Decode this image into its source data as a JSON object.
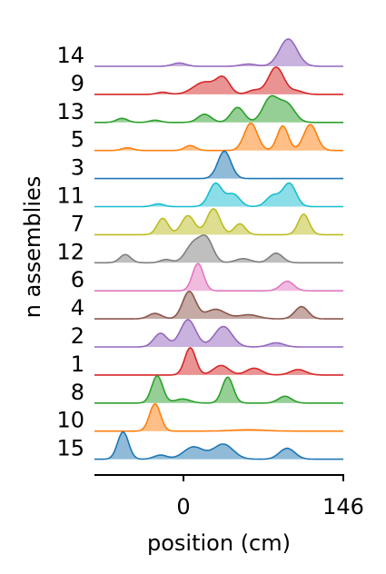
{
  "chart_data": {
    "type": "ridgeline",
    "ylabel": "n assemblies",
    "xlabel": "position (cm)",
    "xaxis": {
      "ticks": [
        "0",
        "146"
      ],
      "range": [
        -80,
        146
      ]
    },
    "colors": {
      "blue": "#1f77b4",
      "orange": "#ff7f0e",
      "green": "#2ca02c",
      "red": "#d62728",
      "purple": "#9467bd",
      "brown": "#8c564b",
      "pink": "#e377c2",
      "gray": "#7f7f7f",
      "olive": "#bcbd22",
      "cyan": "#17becf"
    },
    "series": [
      {
        "name": "14",
        "color": "#9467bd",
        "peaks": [
          [
            -3,
            0.12,
            6
          ],
          [
            60,
            0.08,
            7
          ],
          [
            96,
            1.0,
            8
          ]
        ]
      },
      {
        "name": "9",
        "color": "#d62728",
        "peaks": [
          [
            -18,
            0.08,
            5
          ],
          [
            20,
            0.45,
            10
          ],
          [
            37,
            0.55,
            6
          ],
          [
            65,
            0.15,
            6
          ],
          [
            85,
            1.0,
            7
          ],
          [
            104,
            0.12,
            6
          ]
        ]
      },
      {
        "name": "13",
        "color": "#2ca02c",
        "peaks": [
          [
            -55,
            0.15,
            5
          ],
          [
            -25,
            0.08,
            5
          ],
          [
            20,
            0.3,
            6
          ],
          [
            50,
            0.55,
            6
          ],
          [
            80,
            0.9,
            7
          ],
          [
            95,
            0.65,
            7
          ]
        ]
      },
      {
        "name": "5",
        "color": "#ff7f0e",
        "peaks": [
          [
            -50,
            0.1,
            5
          ],
          [
            7,
            0.18,
            5
          ],
          [
            62,
            1.0,
            6
          ],
          [
            91,
            0.9,
            5
          ],
          [
            116,
            0.95,
            6
          ]
        ]
      },
      {
        "name": "3",
        "color": "#1f77b4",
        "peaks": [
          [
            38,
            1.0,
            6
          ]
        ]
      },
      {
        "name": "11",
        "color": "#17becf",
        "peaks": [
          [
            -22,
            0.1,
            5
          ],
          [
            30,
            0.85,
            6
          ],
          [
            46,
            0.45,
            6
          ],
          [
            82,
            0.4,
            6
          ],
          [
            97,
            0.85,
            6
          ]
        ]
      },
      {
        "name": "7",
        "color": "#bcbd22",
        "peaks": [
          [
            -18,
            0.6,
            5
          ],
          [
            5,
            0.7,
            6
          ],
          [
            28,
            0.95,
            6
          ],
          [
            52,
            0.4,
            5
          ],
          [
            110,
            0.75,
            5
          ]
        ]
      },
      {
        "name": "12",
        "color": "#7f7f7f",
        "peaks": [
          [
            -52,
            0.3,
            5
          ],
          [
            -15,
            0.12,
            5
          ],
          [
            10,
            0.7,
            7
          ],
          [
            22,
            0.8,
            6
          ],
          [
            55,
            0.15,
            7
          ],
          [
            85,
            0.35,
            6
          ]
        ]
      },
      {
        "name": "6",
        "color": "#e377c2",
        "peaks": [
          [
            14,
            1.0,
            5
          ],
          [
            95,
            0.35,
            6
          ]
        ]
      },
      {
        "name": "4",
        "color": "#8c564b",
        "peaks": [
          [
            -25,
            0.2,
            6
          ],
          [
            6,
            1.0,
            6
          ],
          [
            30,
            0.35,
            9
          ],
          [
            60,
            0.15,
            9
          ],
          [
            108,
            0.45,
            6
          ]
        ]
      },
      {
        "name": "2",
        "color": "#9467bd",
        "peaks": [
          [
            -20,
            0.5,
            6
          ],
          [
            5,
            1.0,
            7
          ],
          [
            37,
            0.75,
            8
          ],
          [
            85,
            0.15,
            7
          ]
        ]
      },
      {
        "name": "1",
        "color": "#d62728",
        "peaks": [
          [
            7,
            1.0,
            5
          ],
          [
            35,
            0.35,
            7
          ],
          [
            65,
            0.25,
            7
          ],
          [
            105,
            0.2,
            7
          ]
        ]
      },
      {
        "name": "8",
        "color": "#2ca02c",
        "peaks": [
          [
            -23,
            1.0,
            5
          ],
          [
            0,
            0.15,
            7
          ],
          [
            41,
            0.95,
            5
          ],
          [
            93,
            0.25,
            6
          ]
        ]
      },
      {
        "name": "10",
        "color": "#ff7f0e",
        "peaks": [
          [
            -25,
            1.0,
            5
          ],
          [
            60,
            0.05,
            15
          ]
        ]
      },
      {
        "name": "15",
        "color": "#1f77b4",
        "peaks": [
          [
            -54,
            1.0,
            5
          ],
          [
            -20,
            0.15,
            6
          ],
          [
            10,
            0.45,
            9
          ],
          [
            37,
            0.55,
            9
          ],
          [
            95,
            0.4,
            7
          ]
        ]
      }
    ]
  }
}
